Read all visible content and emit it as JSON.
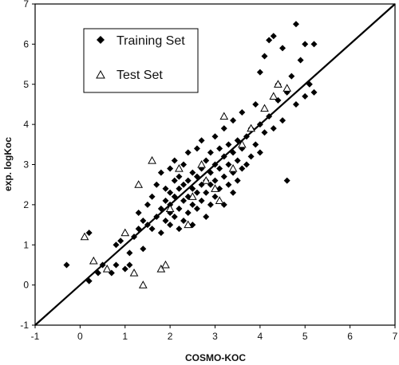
{
  "chart_data": {
    "type": "scatter",
    "xlabel": "COSMO-KOC",
    "ylabel": "exp. logKoc",
    "xlim": [
      -1,
      7
    ],
    "ylim": [
      -1,
      7
    ],
    "x_ticks": [
      "-1",
      "0",
      "1",
      "2",
      "3",
      "4",
      "5",
      "6",
      "7"
    ],
    "y_ticks": [
      "-1",
      "0",
      "1",
      "2",
      "3",
      "4",
      "5",
      "6",
      "7"
    ],
    "grid": false,
    "legend_position": "top-left",
    "reference_line": {
      "x": [
        -1,
        7
      ],
      "y": [
        -1,
        7
      ]
    },
    "series": [
      {
        "name": "Training Set",
        "marker": "filled-diamond",
        "color": "#000000",
        "points": [
          [
            -0.3,
            0.5
          ],
          [
            0.2,
            1.3
          ],
          [
            0.2,
            0.1
          ],
          [
            0.4,
            0.3
          ],
          [
            0.5,
            0.5
          ],
          [
            0.7,
            0.3
          ],
          [
            0.8,
            0.5
          ],
          [
            0.8,
            1.0
          ],
          [
            0.9,
            1.1
          ],
          [
            1.0,
            0.4
          ],
          [
            1.1,
            0.5
          ],
          [
            1.1,
            0.8
          ],
          [
            1.2,
            1.2
          ],
          [
            1.3,
            1.4
          ],
          [
            1.3,
            1.8
          ],
          [
            1.4,
            0.9
          ],
          [
            1.4,
            1.6
          ],
          [
            1.5,
            1.5
          ],
          [
            1.5,
            2.0
          ],
          [
            1.6,
            1.4
          ],
          [
            1.6,
            2.2
          ],
          [
            1.7,
            1.7
          ],
          [
            1.7,
            2.5
          ],
          [
            1.8,
            1.3
          ],
          [
            1.8,
            1.9
          ],
          [
            1.8,
            2.8
          ],
          [
            1.9,
            1.6
          ],
          [
            1.9,
            2.1
          ],
          [
            1.9,
            2.4
          ],
          [
            2.0,
            1.5
          ],
          [
            2.0,
            1.8
          ],
          [
            2.0,
            2.0
          ],
          [
            2.0,
            2.3
          ],
          [
            2.0,
            2.9
          ],
          [
            2.1,
            1.7
          ],
          [
            2.1,
            2.2
          ],
          [
            2.1,
            2.6
          ],
          [
            2.1,
            3.1
          ],
          [
            2.2,
            1.4
          ],
          [
            2.2,
            1.9
          ],
          [
            2.2,
            2.4
          ],
          [
            2.2,
            2.7
          ],
          [
            2.3,
            1.6
          ],
          [
            2.3,
            2.1
          ],
          [
            2.3,
            2.5
          ],
          [
            2.3,
            3.0
          ],
          [
            2.4,
            1.8
          ],
          [
            2.4,
            2.2
          ],
          [
            2.4,
            2.6
          ],
          [
            2.4,
            3.3
          ],
          [
            2.5,
            1.5
          ],
          [
            2.5,
            2.0
          ],
          [
            2.5,
            2.4
          ],
          [
            2.5,
            2.8
          ],
          [
            2.6,
            1.9
          ],
          [
            2.6,
            2.3
          ],
          [
            2.6,
            2.7
          ],
          [
            2.6,
            3.4
          ],
          [
            2.7,
            2.1
          ],
          [
            2.7,
            2.5
          ],
          [
            2.7,
            2.9
          ],
          [
            2.7,
            3.6
          ],
          [
            2.8,
            1.7
          ],
          [
            2.8,
            2.3
          ],
          [
            2.8,
            2.6
          ],
          [
            2.8,
            3.1
          ],
          [
            2.9,
            2.0
          ],
          [
            2.9,
            2.5
          ],
          [
            2.9,
            2.8
          ],
          [
            2.9,
            3.3
          ],
          [
            3.0,
            2.2
          ],
          [
            3.0,
            2.6
          ],
          [
            3.0,
            3.0
          ],
          [
            3.0,
            3.7
          ],
          [
            3.1,
            2.4
          ],
          [
            3.1,
            2.9
          ],
          [
            3.1,
            3.4
          ],
          [
            3.2,
            2.0
          ],
          [
            3.2,
            2.7
          ],
          [
            3.2,
            3.2
          ],
          [
            3.2,
            3.9
          ],
          [
            3.3,
            2.5
          ],
          [
            3.3,
            3.0
          ],
          [
            3.3,
            3.5
          ],
          [
            3.4,
            2.3
          ],
          [
            3.4,
            2.8
          ],
          [
            3.4,
            3.3
          ],
          [
            3.4,
            4.1
          ],
          [
            3.5,
            2.6
          ],
          [
            3.5,
            3.1
          ],
          [
            3.5,
            3.6
          ],
          [
            3.6,
            2.9
          ],
          [
            3.6,
            3.4
          ],
          [
            3.6,
            4.3
          ],
          [
            3.7,
            3.0
          ],
          [
            3.7,
            3.7
          ],
          [
            3.8,
            3.2
          ],
          [
            3.8,
            3.9
          ],
          [
            3.9,
            3.5
          ],
          [
            3.9,
            4.5
          ],
          [
            4.0,
            3.3
          ],
          [
            4.0,
            4.0
          ],
          [
            4.0,
            5.3
          ],
          [
            4.1,
            3.8
          ],
          [
            4.1,
            5.7
          ],
          [
            4.2,
            4.2
          ],
          [
            4.2,
            6.1
          ],
          [
            4.3,
            3.9
          ],
          [
            4.3,
            6.2
          ],
          [
            4.4,
            4.6
          ],
          [
            4.4,
            5.0
          ],
          [
            4.5,
            4.1
          ],
          [
            4.5,
            5.9
          ],
          [
            4.6,
            2.6
          ],
          [
            4.6,
            4.8
          ],
          [
            4.7,
            5.2
          ],
          [
            4.8,
            4.5
          ],
          [
            4.8,
            6.5
          ],
          [
            4.9,
            5.6
          ],
          [
            5.0,
            4.7
          ],
          [
            5.0,
            6.0
          ],
          [
            5.1,
            5.0
          ],
          [
            5.2,
            4.8
          ],
          [
            5.2,
            6.0
          ]
        ]
      },
      {
        "name": "Test Set",
        "marker": "open-triangle",
        "color": "#000000",
        "points": [
          [
            0.1,
            1.2
          ],
          [
            0.3,
            0.6
          ],
          [
            0.6,
            0.4
          ],
          [
            1.0,
            1.3
          ],
          [
            1.2,
            0.3
          ],
          [
            1.3,
            2.5
          ],
          [
            1.4,
            0.0
          ],
          [
            1.6,
            3.1
          ],
          [
            1.8,
            0.4
          ],
          [
            1.9,
            0.5
          ],
          [
            2.0,
            1.9
          ],
          [
            2.2,
            2.9
          ],
          [
            2.4,
            1.5
          ],
          [
            2.5,
            2.2
          ],
          [
            2.7,
            3.0
          ],
          [
            2.8,
            2.6
          ],
          [
            3.0,
            2.4
          ],
          [
            3.1,
            2.1
          ],
          [
            3.2,
            4.2
          ],
          [
            3.4,
            2.9
          ],
          [
            3.6,
            3.5
          ],
          [
            3.8,
            3.9
          ],
          [
            4.1,
            4.4
          ],
          [
            4.3,
            4.7
          ],
          [
            4.4,
            5.0
          ],
          [
            4.6,
            4.9
          ]
        ]
      }
    ]
  }
}
